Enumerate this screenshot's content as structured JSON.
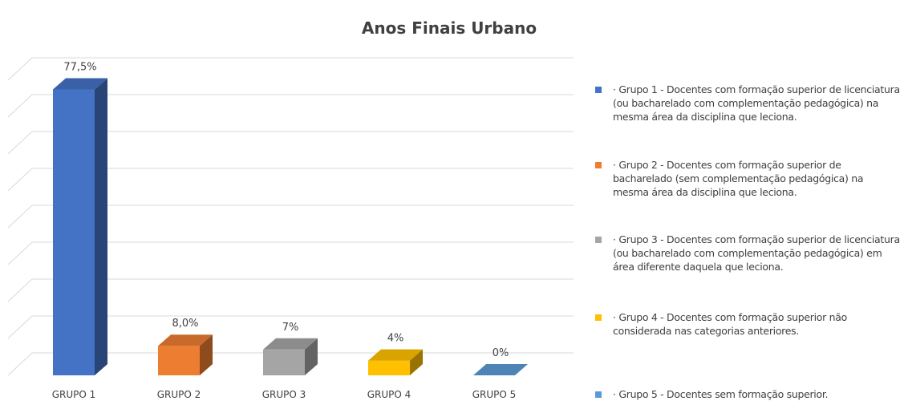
{
  "chart_data": {
    "type": "bar3d",
    "title": "Anos Finais Urbano",
    "categories": [
      "GRUPO 1",
      "GRUPO 2",
      "GRUPO 3",
      "GRUPO 4",
      "GRUPO 5"
    ],
    "values": [
      77.5,
      8.0,
      7,
      4,
      0
    ],
    "value_labels": [
      "77,5%",
      "8,0%",
      "7%",
      "4%",
      "0%"
    ],
    "colors": [
      "#4472c4",
      "#ed7d31",
      "#a5a5a5",
      "#ffc000",
      "#5b9bd5"
    ],
    "legend_labels": [
      "· Grupo 1 - Docentes com formação superior de licenciatura (ou bacharelado com complementação pedagógica) na mesma área da disciplina que leciona.",
      "· Grupo 2 - Docentes com formação superior de bacharelado (sem complementação pedagógica) na mesma área da disciplina que leciona.",
      "· Grupo 3 - Docentes com formação superior de licenciatura (ou bacharelado com complementação pedagógica) em área diferente daquela que leciona.",
      "· Grupo 4 - Docentes com formação superior não considerada nas categorias anteriores.",
      "· Grupo 5 - Docentes sem formação superior."
    ],
    "ylim": [
      0,
      80
    ],
    "yticks": [
      0,
      10,
      20,
      30,
      40,
      50,
      60,
      70,
      80
    ],
    "grid": true,
    "legend": "right"
  }
}
